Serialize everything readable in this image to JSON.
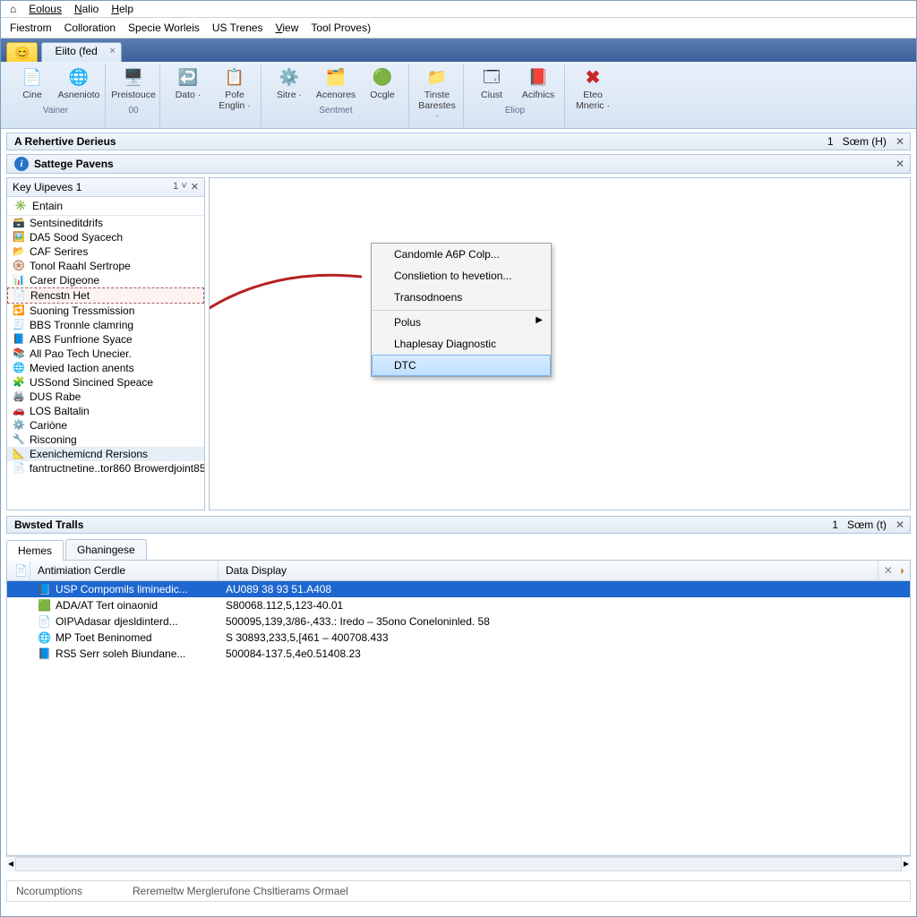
{
  "menubar": {
    "items": [
      "Eolous",
      "Nalio",
      "Help"
    ],
    "underline_index": [
      0,
      0,
      0
    ]
  },
  "secondbar": {
    "items": [
      "Fiestrom",
      "Colloration",
      "Specie Worleis",
      "US Trenes",
      "View",
      "Tool Proves)"
    ],
    "underline_index": [
      null,
      null,
      null,
      null,
      0,
      null
    ]
  },
  "tabs": {
    "yellow_icon": "😊",
    "active_label": "Eiito (fed",
    "close_glyph": "×"
  },
  "ribbon": {
    "groups": [
      {
        "label": "Vainer",
        "buttons": [
          {
            "icon": "📄",
            "text": "Cine"
          },
          {
            "icon": "🌐",
            "text": "Asnenioto"
          }
        ]
      },
      {
        "label": "00",
        "buttons": [
          {
            "icon": "🖥️",
            "text": "Preistouce"
          }
        ]
      },
      {
        "label": "",
        "buttons": [
          {
            "icon": "↩️",
            "text": "Dato ·"
          },
          {
            "icon": "📋",
            "text": "Pofe Englin ·"
          }
        ]
      },
      {
        "label": "Sentmet",
        "buttons": [
          {
            "icon": "⚙️",
            "text": "Sitre ·"
          },
          {
            "icon": "🗂️",
            "text": "Acenores"
          },
          {
            "icon": "🟢",
            "text": "Ocgle"
          }
        ]
      },
      {
        "label": "",
        "buttons": [
          {
            "icon": "📁",
            "text": "Tinste Barestes ·"
          }
        ]
      },
      {
        "label": "Eliop",
        "buttons": [
          {
            "icon": "🗔",
            "text": "Ciust"
          },
          {
            "icon": "📕",
            "text": "Acifnics"
          }
        ]
      },
      {
        "label": "",
        "buttons": [
          {
            "icon": "✖",
            "text": "Eteo Mneric ·",
            "red": true
          }
        ]
      }
    ]
  },
  "panels": {
    "top_title": "A Rehertive Derieus",
    "top_right_num": "1",
    "top_right_label": "Sœm (H)",
    "sattage_title": "Sattege Pavens"
  },
  "left": {
    "header": "Key Uipeves 1",
    "header_badge": "1 ˅",
    "entain": "Entain",
    "items": [
      {
        "icon": "🗃️",
        "text": "Sentsineditdrifs"
      },
      {
        "icon": "🖼️",
        "text": "DA5 Sood Syacech"
      },
      {
        "icon": "📂",
        "text": "CAF Serires"
      },
      {
        "icon": "🛞",
        "text": "Tonol Raahl Sertrope"
      },
      {
        "icon": "📊",
        "text": "Carer Digeone"
      },
      {
        "icon": "📄",
        "text": "Rencstn Het",
        "boxed": true
      },
      {
        "icon": "🔁",
        "text": "Suoning Tressmission"
      },
      {
        "icon": "🧾",
        "text": "BBS Tronnle clamring"
      },
      {
        "icon": "📘",
        "text": "ABS Funfrione Syace"
      },
      {
        "icon": "📚",
        "text": "All Pao Tech Unecier."
      },
      {
        "icon": "🌐",
        "text": "Mevied Iaction anents"
      },
      {
        "icon": "🧩",
        "text": "USSond Sincined Speace"
      },
      {
        "icon": "🖨️",
        "text": "DUS Rabe"
      },
      {
        "icon": "🚗",
        "text": "LOS Baltalin"
      },
      {
        "icon": "⚙️",
        "text": "Cariòne"
      },
      {
        "icon": "🔧",
        "text": "Risconing"
      },
      {
        "icon": "📐",
        "text": "Exenichemicnd Rersions",
        "sel": true
      },
      {
        "icon": "📄",
        "text": "fantructnetine..tor860 Browerdjoint85"
      }
    ]
  },
  "context_menu": {
    "items": [
      {
        "label": "Candomle A6P Colp..."
      },
      {
        "label": "Conslietion to hevetion..."
      },
      {
        "label": "Transodnoens"
      },
      {
        "label": "Polus",
        "sep": true,
        "submenu": true
      },
      {
        "label": "Lhaplesay Diagnostic"
      },
      {
        "label": "DTC",
        "highlight": true
      }
    ]
  },
  "lower": {
    "title": "Bwsted Tralls",
    "right_num": "1",
    "right_label": "Sœm (t)",
    "tabs": [
      "Hemes",
      "Ghaningese"
    ],
    "columns": {
      "icon": "📄",
      "c1": "Antimiation Cerdle",
      "c2": "Data Display"
    },
    "rows": [
      {
        "icon": "📘",
        "c1": "USP Compomils liminedic...",
        "c2": "AU089 38 93 51.A408",
        "sel": true
      },
      {
        "icon": "🟩",
        "c1": "ADA/AT Tert oinaonid",
        "c2": "S80068.112,5,123-40.01"
      },
      {
        "icon": "📄",
        "c1": "OIP\\Adasar djesldinterd...",
        "c2": "500095,139,3/86-,433.: Iredo – 35ono Coneloninled. 58"
      },
      {
        "icon": "🌐",
        "c1": "MP Toet Beninomed",
        "c2": "S 30893,233,5,[461 – 400708.433"
      },
      {
        "icon": "📘",
        "c1": "RS5 Serr soleh Biundane...",
        "c2": "500084-137.5,4e0.51408.23"
      }
    ]
  },
  "status": {
    "left": "Ncorumptions",
    "right": "Reremeltw Merglerufone Chsltierams Ormael"
  },
  "colors": {
    "selection_blue": "#1e66d0",
    "menu_highlight": "#bfe0ff",
    "ribbon_bg_top": "#e8f0fa",
    "ribbon_bg_bot": "#d6e4f2",
    "tabbar_top": "#5a7db3",
    "tabbar_bot": "#3d6099",
    "arrow_red": "#b82020"
  }
}
